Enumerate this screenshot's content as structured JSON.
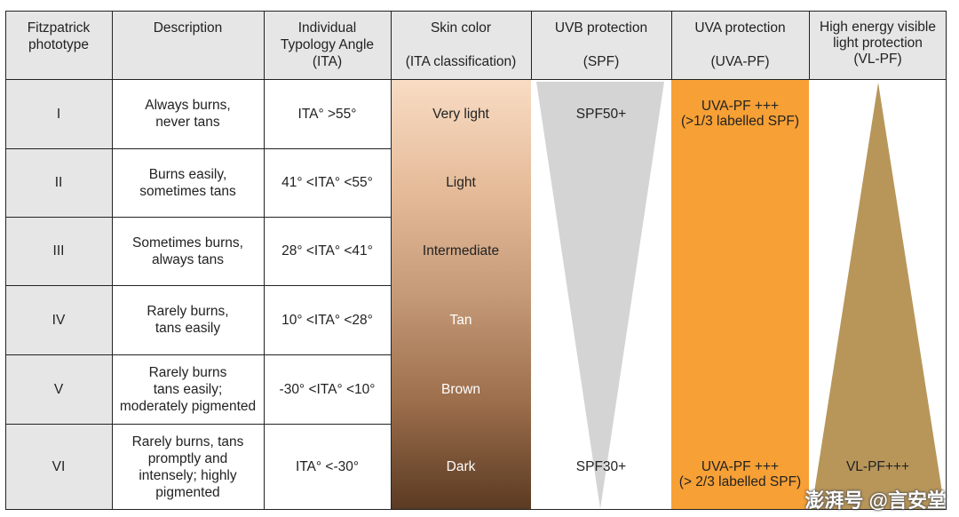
{
  "headers": {
    "phototype": "Fitzpatrick\nphototype",
    "description": "Description",
    "ita": "Individual\nTypology Angle\n(ITA)",
    "skin_color": "Skin color\n\n(ITA classification)",
    "uvb": "UVB protection\n\n(SPF)",
    "uva": "UVA protection\n\n(UVA-PF)",
    "hev": "High energy visible\nlight protection\n(VL-PF)"
  },
  "rows": [
    {
      "type": "I",
      "description": "Always burns,\nnever tans",
      "ita": "ITA° >55°",
      "skin": "Very light"
    },
    {
      "type": "II",
      "description": "Burns easily,\nsometimes tans",
      "ita": "41° <ITA° <55°",
      "skin": "Light"
    },
    {
      "type": "III",
      "description": "Sometimes burns,\nalways tans",
      "ita": "28° <ITA° <41°",
      "skin": "Intermediate"
    },
    {
      "type": "IV",
      "description": "Rarely burns,\ntans easily",
      "ita": "10° <ITA° <28°",
      "skin": "Tan"
    },
    {
      "type": "V",
      "description": "Rarely burns\ntans easily;\nmoderately pigmented",
      "ita": "-30° <ITA° <10°",
      "skin": "Brown"
    },
    {
      "type": "VI",
      "description": "Rarely burns, tans\npromptly and\nintensely; highly\npigmented",
      "ita": "ITA° <-30°",
      "skin": "Dark"
    }
  ],
  "uvb": {
    "top": "SPF50+",
    "bottom": "SPF30+"
  },
  "uva": {
    "top": "UVA-PF +++\n(>1/3 labelled SPF)",
    "bottom": "UVA-PF +++\n(> 2/3 labelled SPF)"
  },
  "hev": {
    "bottom": "VL-PF+++"
  },
  "watermark": "澎湃号 @言安堂",
  "colors": {
    "header_gray": "#e6e6e6",
    "skin_top": "#f8dcc4",
    "skin_bottom": "#5a3a22",
    "uvb_triangle": "#d4d4d4",
    "uva_orange": "#f7a035",
    "hev_triangle": "#b8965a"
  }
}
